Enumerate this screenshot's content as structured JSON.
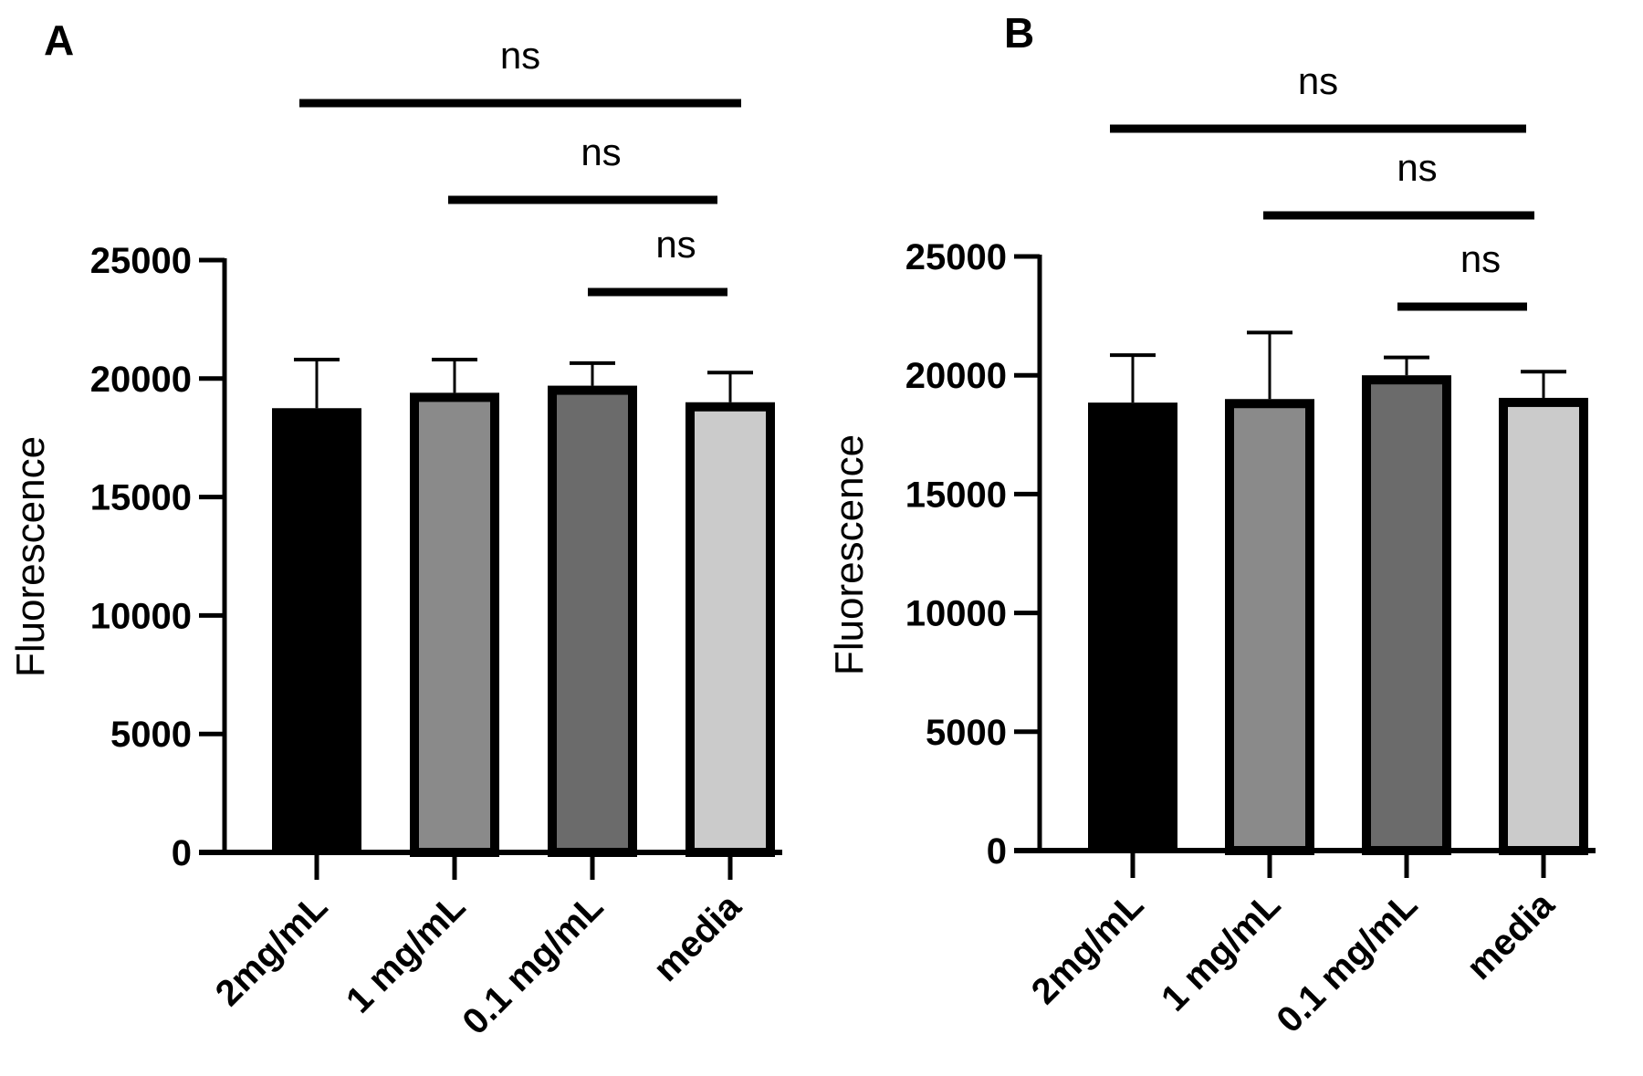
{
  "chart_data": [
    {
      "panel": "A",
      "type": "bar",
      "title": "",
      "xlabel": "",
      "ylabel": "Fluorescence",
      "ylim": [
        0,
        25000
      ],
      "yticks": [
        0,
        5000,
        10000,
        15000,
        20000,
        25000
      ],
      "ytick_labels": [
        "0",
        "5000",
        "10000",
        "15000",
        "20000",
        "25000"
      ],
      "categories": [
        "2mg/mL",
        "1 mg/mL",
        "0.1 mg/mL",
        "media"
      ],
      "values": [
        18750,
        19400,
        19700,
        19000
      ],
      "error_upper": [
        20800,
        20800,
        20650,
        20250
      ],
      "bar_colors": [
        "#000000",
        "#8a8a8a",
        "#6b6b6b",
        "#cbcbcb"
      ],
      "grid": false,
      "significance": [
        {
          "from": "2mg/mL",
          "to": "media",
          "label": "ns"
        },
        {
          "from": "1 mg/mL",
          "to": "media",
          "label": "ns"
        },
        {
          "from": "0.1 mg/mL",
          "to": "media",
          "label": "ns"
        }
      ]
    },
    {
      "panel": "B",
      "type": "bar",
      "title": "",
      "xlabel": "",
      "ylabel": "Fluorescence",
      "ylim": [
        0,
        25000
      ],
      "yticks": [
        0,
        5000,
        10000,
        15000,
        20000,
        25000
      ],
      "ytick_labels": [
        "0",
        "5000",
        "10000",
        "15000",
        "20000",
        "25000"
      ],
      "categories": [
        "2mg/mL",
        "1 mg/mL",
        "0.1 mg/mL",
        "media"
      ],
      "values": [
        18850,
        19000,
        20000,
        19050
      ],
      "error_upper": [
        20850,
        21800,
        20750,
        20150
      ],
      "bar_colors": [
        "#000000",
        "#8a8a8a",
        "#6b6b6b",
        "#cbcbcb"
      ],
      "grid": false,
      "significance": [
        {
          "from": "2mg/mL",
          "to": "media",
          "label": "ns"
        },
        {
          "from": "1 mg/mL",
          "to": "media",
          "label": "ns"
        },
        {
          "from": "0.1 mg/mL",
          "to": "media",
          "label": "ns"
        }
      ]
    }
  ]
}
